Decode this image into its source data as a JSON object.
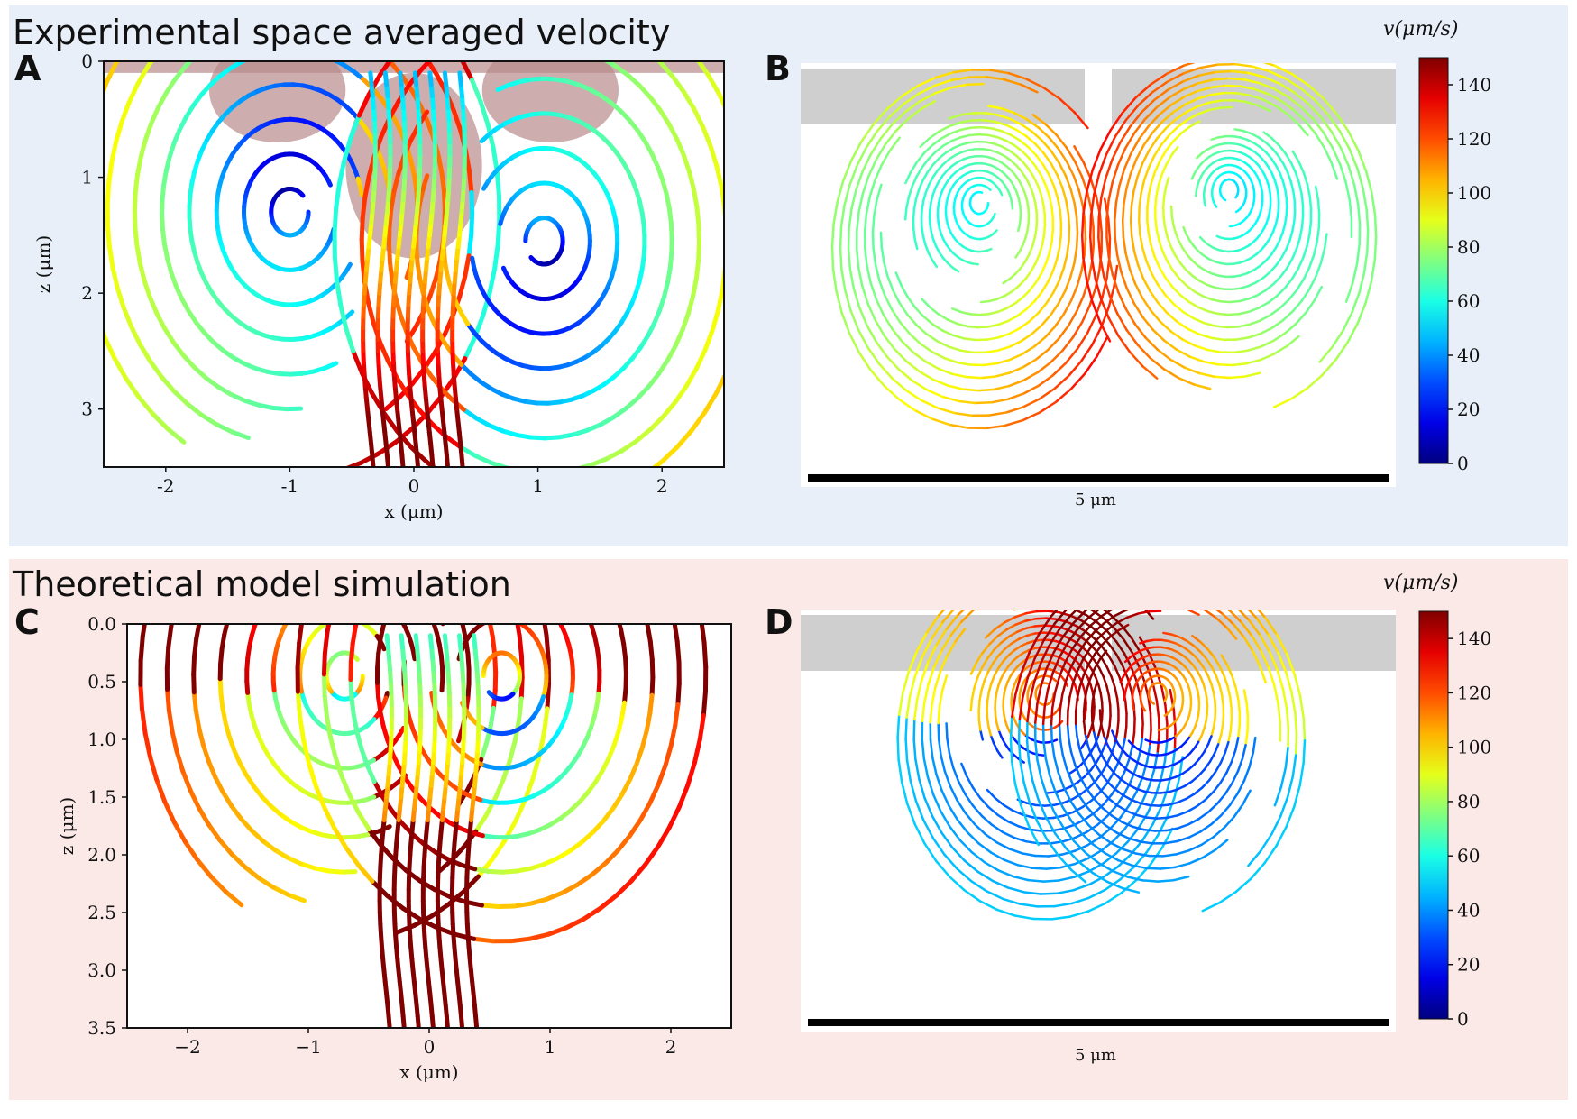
{
  "colors": {
    "band_top": "#e8eff9",
    "band_bottom": "#fbe9e8",
    "pink_overlay": "#b88a8a",
    "gray_wall": "#cfcfcf",
    "scale_bar": "#000000",
    "colormap": "jet"
  },
  "bands": {
    "top_title": "Experimental space averaged velocity",
    "bottom_title": "Theoretical model simulation"
  },
  "panels": {
    "A": "A",
    "B": "B",
    "C": "C",
    "D": "D"
  },
  "scale_bar_label_b": "5 μm",
  "scale_bar_label_d": "5 μm",
  "chart_data": [
    {
      "panel": "A",
      "type": "streamplot",
      "xlabel": "x (μm)",
      "ylabel": "z (μm)",
      "xlim": [
        -2.5,
        2.5
      ],
      "ylim": [
        3.5,
        0
      ],
      "xticks": [
        -2,
        -1,
        0,
        1,
        2
      ],
      "xtick_labels": [
        "-2",
        "-1",
        "0",
        "1",
        "2"
      ],
      "yticks": [
        0,
        1,
        2,
        3
      ],
      "ytick_labels": [
        "0",
        "1",
        "2",
        "3"
      ],
      "vortex_centers": [
        [
          -1.0,
          1.3
        ],
        [
          1.05,
          1.55
        ]
      ],
      "max_speed_region": "central jet upward along x=0",
      "color_scale": [
        0,
        150
      ]
    },
    {
      "panel": "B",
      "type": "streamline-render",
      "vortex_centers": [
        "left",
        "right"
      ],
      "colorbar_label": "v(μm/s)",
      "colorbar_ticks": [
        0,
        20,
        40,
        60,
        80,
        100,
        120,
        140
      ],
      "colorbar_tick_labels": [
        "0",
        "20",
        "40",
        "60",
        "80",
        "100",
        "120",
        "140"
      ],
      "color_range": [
        0,
        150
      ]
    },
    {
      "panel": "C",
      "type": "streamplot",
      "xlabel": "x (μm)",
      "ylabel": "z (μm)",
      "xlim": [
        -2.5,
        2.5
      ],
      "ylim": [
        3.5,
        0
      ],
      "xticks": [
        -2,
        -1,
        0,
        1,
        2
      ],
      "xtick_labels": [
        "−2",
        "−1",
        "0",
        "1",
        "2"
      ],
      "yticks": [
        0,
        0.5,
        1.0,
        1.5,
        2.0,
        2.5,
        3.0,
        3.5
      ],
      "ytick_labels": [
        "0.0",
        "0.5",
        "1.0",
        "1.5",
        "2.0",
        "2.5",
        "3.0",
        "3.5"
      ],
      "vortex_centers": [
        [
          -0.7,
          0.45
        ],
        [
          0.6,
          0.45
        ]
      ],
      "max_speed_region": "central jet upward along x=0 and near top surface",
      "color_scale": [
        0,
        150
      ]
    },
    {
      "panel": "D",
      "type": "streamline-render",
      "vortex_centers": [
        "left",
        "right"
      ],
      "colorbar_label": "v(μm/s)",
      "colorbar_ticks": [
        0,
        20,
        40,
        60,
        80,
        100,
        120,
        140
      ],
      "colorbar_tick_labels": [
        "0",
        "20",
        "40",
        "60",
        "80",
        "100",
        "120",
        "140"
      ],
      "color_range": [
        0,
        150
      ]
    }
  ]
}
